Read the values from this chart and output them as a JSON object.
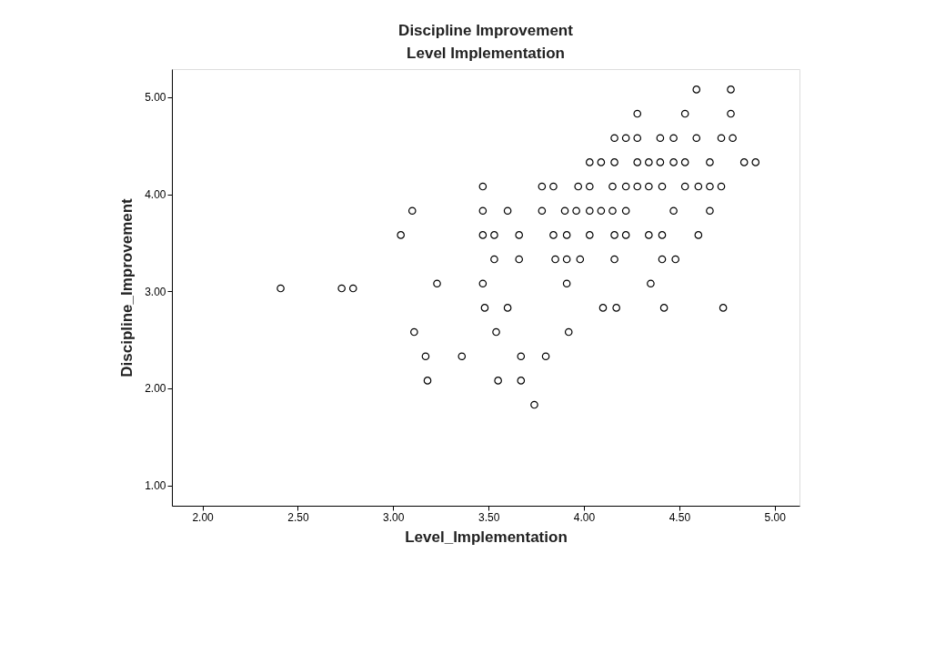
{
  "chart_data": {
    "type": "scatter",
    "title": "Discipline Improvement",
    "subtitle": "Level Implementation",
    "xlabel": "Level_Implementation",
    "ylabel": "Discipline_Improvement",
    "x": [
      4.59,
      4.77,
      4.28,
      4.53,
      4.77,
      4.16,
      4.22,
      4.28,
      4.4,
      4.47,
      4.59,
      4.72,
      4.78,
      4.03,
      4.09,
      4.16,
      4.28,
      4.34,
      4.4,
      4.47,
      4.53,
      4.66,
      4.84,
      4.9,
      3.47,
      3.78,
      3.84,
      3.97,
      4.03,
      4.15,
      4.22,
      4.28,
      4.34,
      4.41,
      4.53,
      4.6,
      4.66,
      4.72,
      3.1,
      3.47,
      3.6,
      3.78,
      3.9,
      3.96,
      4.03,
      4.09,
      4.15,
      4.22,
      4.47,
      4.66,
      3.04,
      3.47,
      3.53,
      3.66,
      3.84,
      3.91,
      4.03,
      4.16,
      4.22,
      4.34,
      4.41,
      4.6,
      3.53,
      3.66,
      3.85,
      3.91,
      3.98,
      4.16,
      4.41,
      4.48,
      3.23,
      3.47,
      3.91,
      4.35,
      2.41,
      2.73,
      2.79,
      3.48,
      3.6,
      4.1,
      4.17,
      4.42,
      4.73,
      3.11,
      3.54,
      3.92,
      3.17,
      3.36,
      3.67,
      3.8,
      3.18,
      3.55,
      3.67,
      3.74
    ],
    "series": [
      {
        "color": "#000000",
        "values": [
          5.08,
          5.08,
          4.83,
          4.83,
          4.83,
          4.58,
          4.58,
          4.58,
          4.58,
          4.58,
          4.58,
          4.58,
          4.58,
          4.33,
          4.33,
          4.33,
          4.33,
          4.33,
          4.33,
          4.33,
          4.33,
          4.33,
          4.33,
          4.33,
          4.08,
          4.08,
          4.08,
          4.08,
          4.08,
          4.08,
          4.08,
          4.08,
          4.08,
          4.08,
          4.08,
          4.08,
          4.08,
          4.08,
          3.83,
          3.83,
          3.83,
          3.83,
          3.83,
          3.83,
          3.83,
          3.83,
          3.83,
          3.83,
          3.83,
          3.83,
          3.58,
          3.58,
          3.58,
          3.58,
          3.58,
          3.58,
          3.58,
          3.58,
          3.58,
          3.58,
          3.58,
          3.58,
          3.33,
          3.33,
          3.33,
          3.33,
          3.33,
          3.33,
          3.33,
          3.33,
          3.08,
          3.08,
          3.08,
          3.08,
          3.03,
          3.03,
          3.03,
          2.83,
          2.83,
          2.83,
          2.83,
          2.83,
          2.83,
          2.58,
          2.58,
          2.58,
          2.33,
          2.33,
          2.33,
          2.33,
          2.08,
          2.08,
          2.08,
          1.83
        ]
      }
    ],
    "xlim": [
      1.84,
      5.13
    ],
    "ylim": [
      0.79,
      5.29
    ],
    "xticks": [
      {
        "value": 2,
        "label": "2.00"
      },
      {
        "value": 2.5,
        "label": "2.50"
      },
      {
        "value": 3,
        "label": "3.00"
      },
      {
        "value": 3.5,
        "label": "3.50"
      },
      {
        "value": 4,
        "label": "4.00"
      },
      {
        "value": 4.5,
        "label": "4.50"
      },
      {
        "value": 5,
        "label": "5.00"
      }
    ],
    "yticks": [
      {
        "value": 1,
        "label": "1.00"
      },
      {
        "value": 2,
        "label": "2.00"
      },
      {
        "value": 3,
        "label": "3.00"
      },
      {
        "value": 4,
        "label": "4.00"
      },
      {
        "value": 5,
        "label": "5.00"
      }
    ],
    "grid": false,
    "legend": false,
    "marker": "circle"
  }
}
